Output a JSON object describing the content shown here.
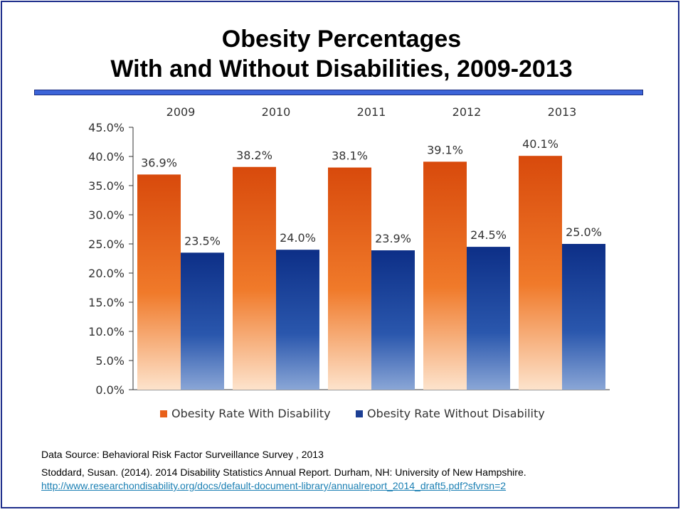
{
  "title_lines": [
    "Obesity Percentages",
    "With and Without Disabilities, 2009-2013"
  ],
  "chart_data": {
    "type": "bar",
    "categories": [
      "2009",
      "2010",
      "2011",
      "2012",
      "2013"
    ],
    "series": [
      {
        "name": "Obesity Rate With Disability",
        "values": [
          36.9,
          38.2,
          38.1,
          39.1,
          40.1
        ],
        "labels": [
          "36.9%",
          "38.2%",
          "38.1%",
          "39.1%",
          "40.1%"
        ],
        "color": "#e8601a"
      },
      {
        "name": "Obesity Rate Without Disability",
        "values": [
          23.5,
          24.0,
          23.9,
          24.5,
          25.0
        ],
        "labels": [
          "23.5%",
          "24.0%",
          "23.9%",
          "24.5%",
          "25.0%"
        ],
        "color": "#1c3f94"
      }
    ],
    "ylim": [
      0,
      45
    ],
    "yticks": [
      "0.0%",
      "5.0%",
      "10.0%",
      "15.0%",
      "20.0%",
      "25.0%",
      "30.0%",
      "35.0%",
      "40.0%",
      "45.0%"
    ],
    "xlabel": "",
    "ylabel": "",
    "legend_position": "bottom",
    "category_labels_position": "top",
    "grid": false
  },
  "footer": {
    "source_line": "Data Source: Behavioral Risk Factor Surveillance Survey  , 2013",
    "citation_line": "Stoddard, Susan. (2014). 2014 Disability Statistics Annual Report. Durham, NH: University of New Hampshire.",
    "link_text": "http://www.researchondisability.org/docs/default-document-library/annualreport_2014_draft5.pdf?sfvrsn=2"
  }
}
